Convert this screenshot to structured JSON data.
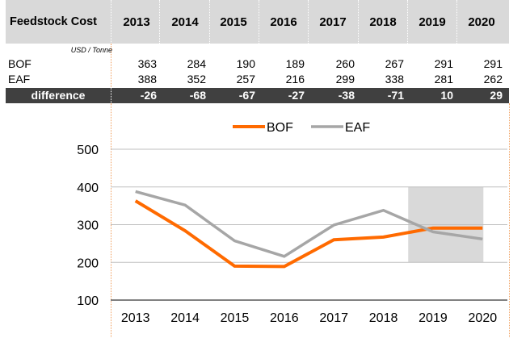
{
  "table": {
    "title": "Feedstock Cost",
    "years": [
      "2013",
      "2014",
      "2015",
      "2016",
      "2017",
      "2018",
      "2019",
      "2020"
    ],
    "units": "USD / Tonne",
    "rows": [
      {
        "label": "BOF",
        "values": [
          "363",
          "284",
          "190",
          "189",
          "260",
          "267",
          "291",
          "291"
        ]
      },
      {
        "label": "EAF",
        "values": [
          "388",
          "352",
          "257",
          "216",
          "299",
          "338",
          "281",
          "262"
        ]
      }
    ],
    "difference": {
      "label": "difference",
      "values": [
        "-26",
        "-68",
        "-67",
        "-27",
        "-38",
        "-71",
        "10",
        "29"
      ]
    }
  },
  "chart_data": {
    "type": "line",
    "x": [
      "2013",
      "2014",
      "2015",
      "2016",
      "2017",
      "2018",
      "2019",
      "2020"
    ],
    "series": [
      {
        "name": "BOF",
        "color": "#ff6a00",
        "values": [
          363,
          284,
          190,
          189,
          260,
          267,
          291,
          291
        ]
      },
      {
        "name": "EAF",
        "color": "#a6a6a6",
        "values": [
          388,
          352,
          257,
          216,
          299,
          338,
          281,
          262
        ]
      }
    ],
    "yticks": [
      100,
      200,
      300,
      400,
      500
    ],
    "ylim": [
      100,
      500
    ],
    "grid": true,
    "legend": "top-center",
    "shaded_region": {
      "x_start": "2019",
      "x_end": "2020",
      "y_start": 200,
      "y_end": 400,
      "color": "#d9d9d9"
    }
  }
}
